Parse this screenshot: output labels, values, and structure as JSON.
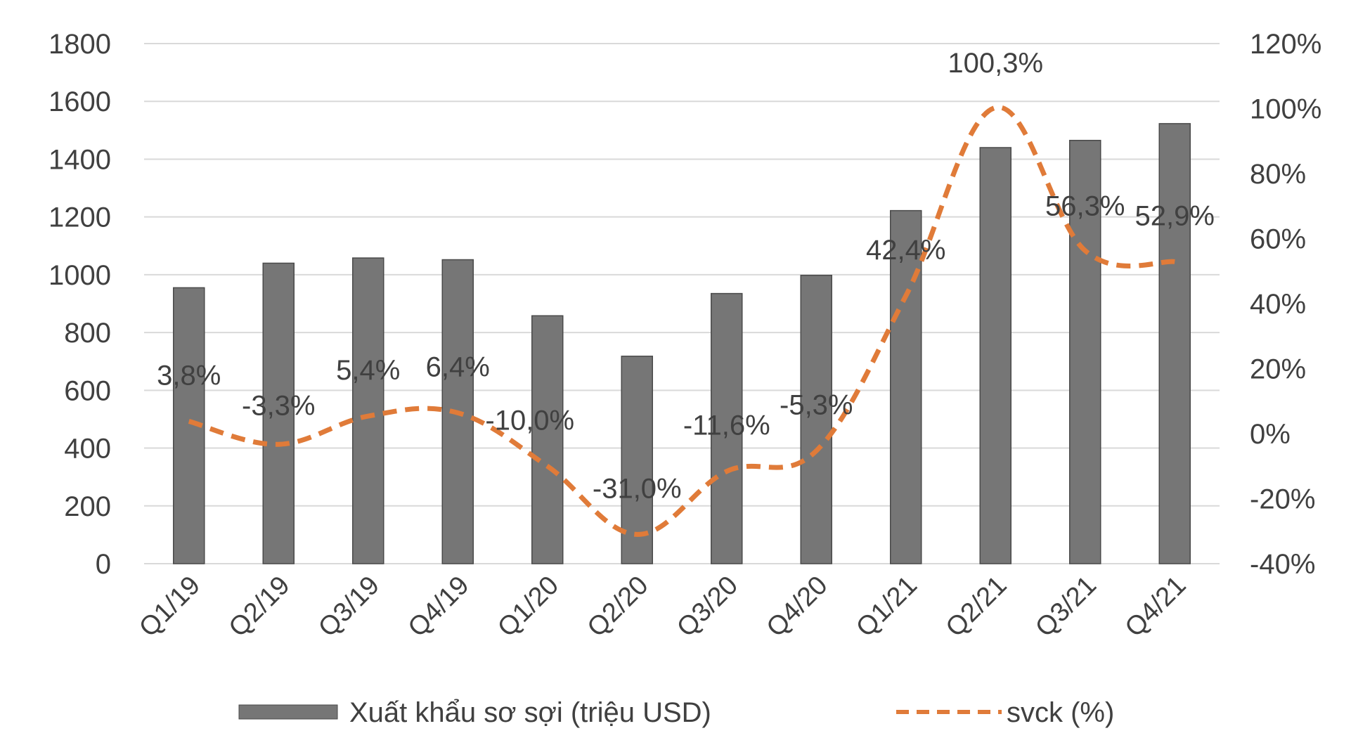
{
  "chart_data": {
    "type": "bar",
    "categories": [
      "Q1/19",
      "Q2/19",
      "Q3/19",
      "Q4/19",
      "Q1/20",
      "Q2/20",
      "Q3/20",
      "Q4/20",
      "Q1/21",
      "Q2/21",
      "Q3/21",
      "Q4/21"
    ],
    "series": [
      {
        "name": "Xuất khẩu sơ sợi (triệu USD)",
        "type": "bar",
        "axis": "left",
        "color": "#767676",
        "values": [
          955,
          1040,
          1058,
          1052,
          858,
          718,
          935,
          998,
          1222,
          1440,
          1465,
          1523
        ]
      },
      {
        "name": "svck (%)",
        "type": "line",
        "axis": "right",
        "color": "#E07B39",
        "style": "dashed",
        "values": [
          3.8,
          -3.3,
          5.4,
          6.4,
          -10.0,
          -31.0,
          -11.6,
          -5.3,
          42.4,
          100.3,
          56.3,
          52.9
        ],
        "labels": [
          "3,8%",
          "-3,3%",
          "5,4%",
          "6,4%",
          "-10,0%",
          "-31,0%",
          "-11,6%",
          "-5,3%",
          "42,4%",
          "100,3%",
          "56,3%",
          "52,9%"
        ]
      }
    ],
    "y_left": {
      "min": 0,
      "max": 1800,
      "ticks": [
        0,
        200,
        400,
        600,
        800,
        1000,
        1200,
        1400,
        1600,
        1800
      ]
    },
    "y_right": {
      "min": -40,
      "max": 120,
      "ticks": [
        "-40%",
        "-20%",
        "0%",
        "20%",
        "40%",
        "60%",
        "80%",
        "100%",
        "120%"
      ]
    },
    "grid": true,
    "legend_position": "bottom"
  }
}
